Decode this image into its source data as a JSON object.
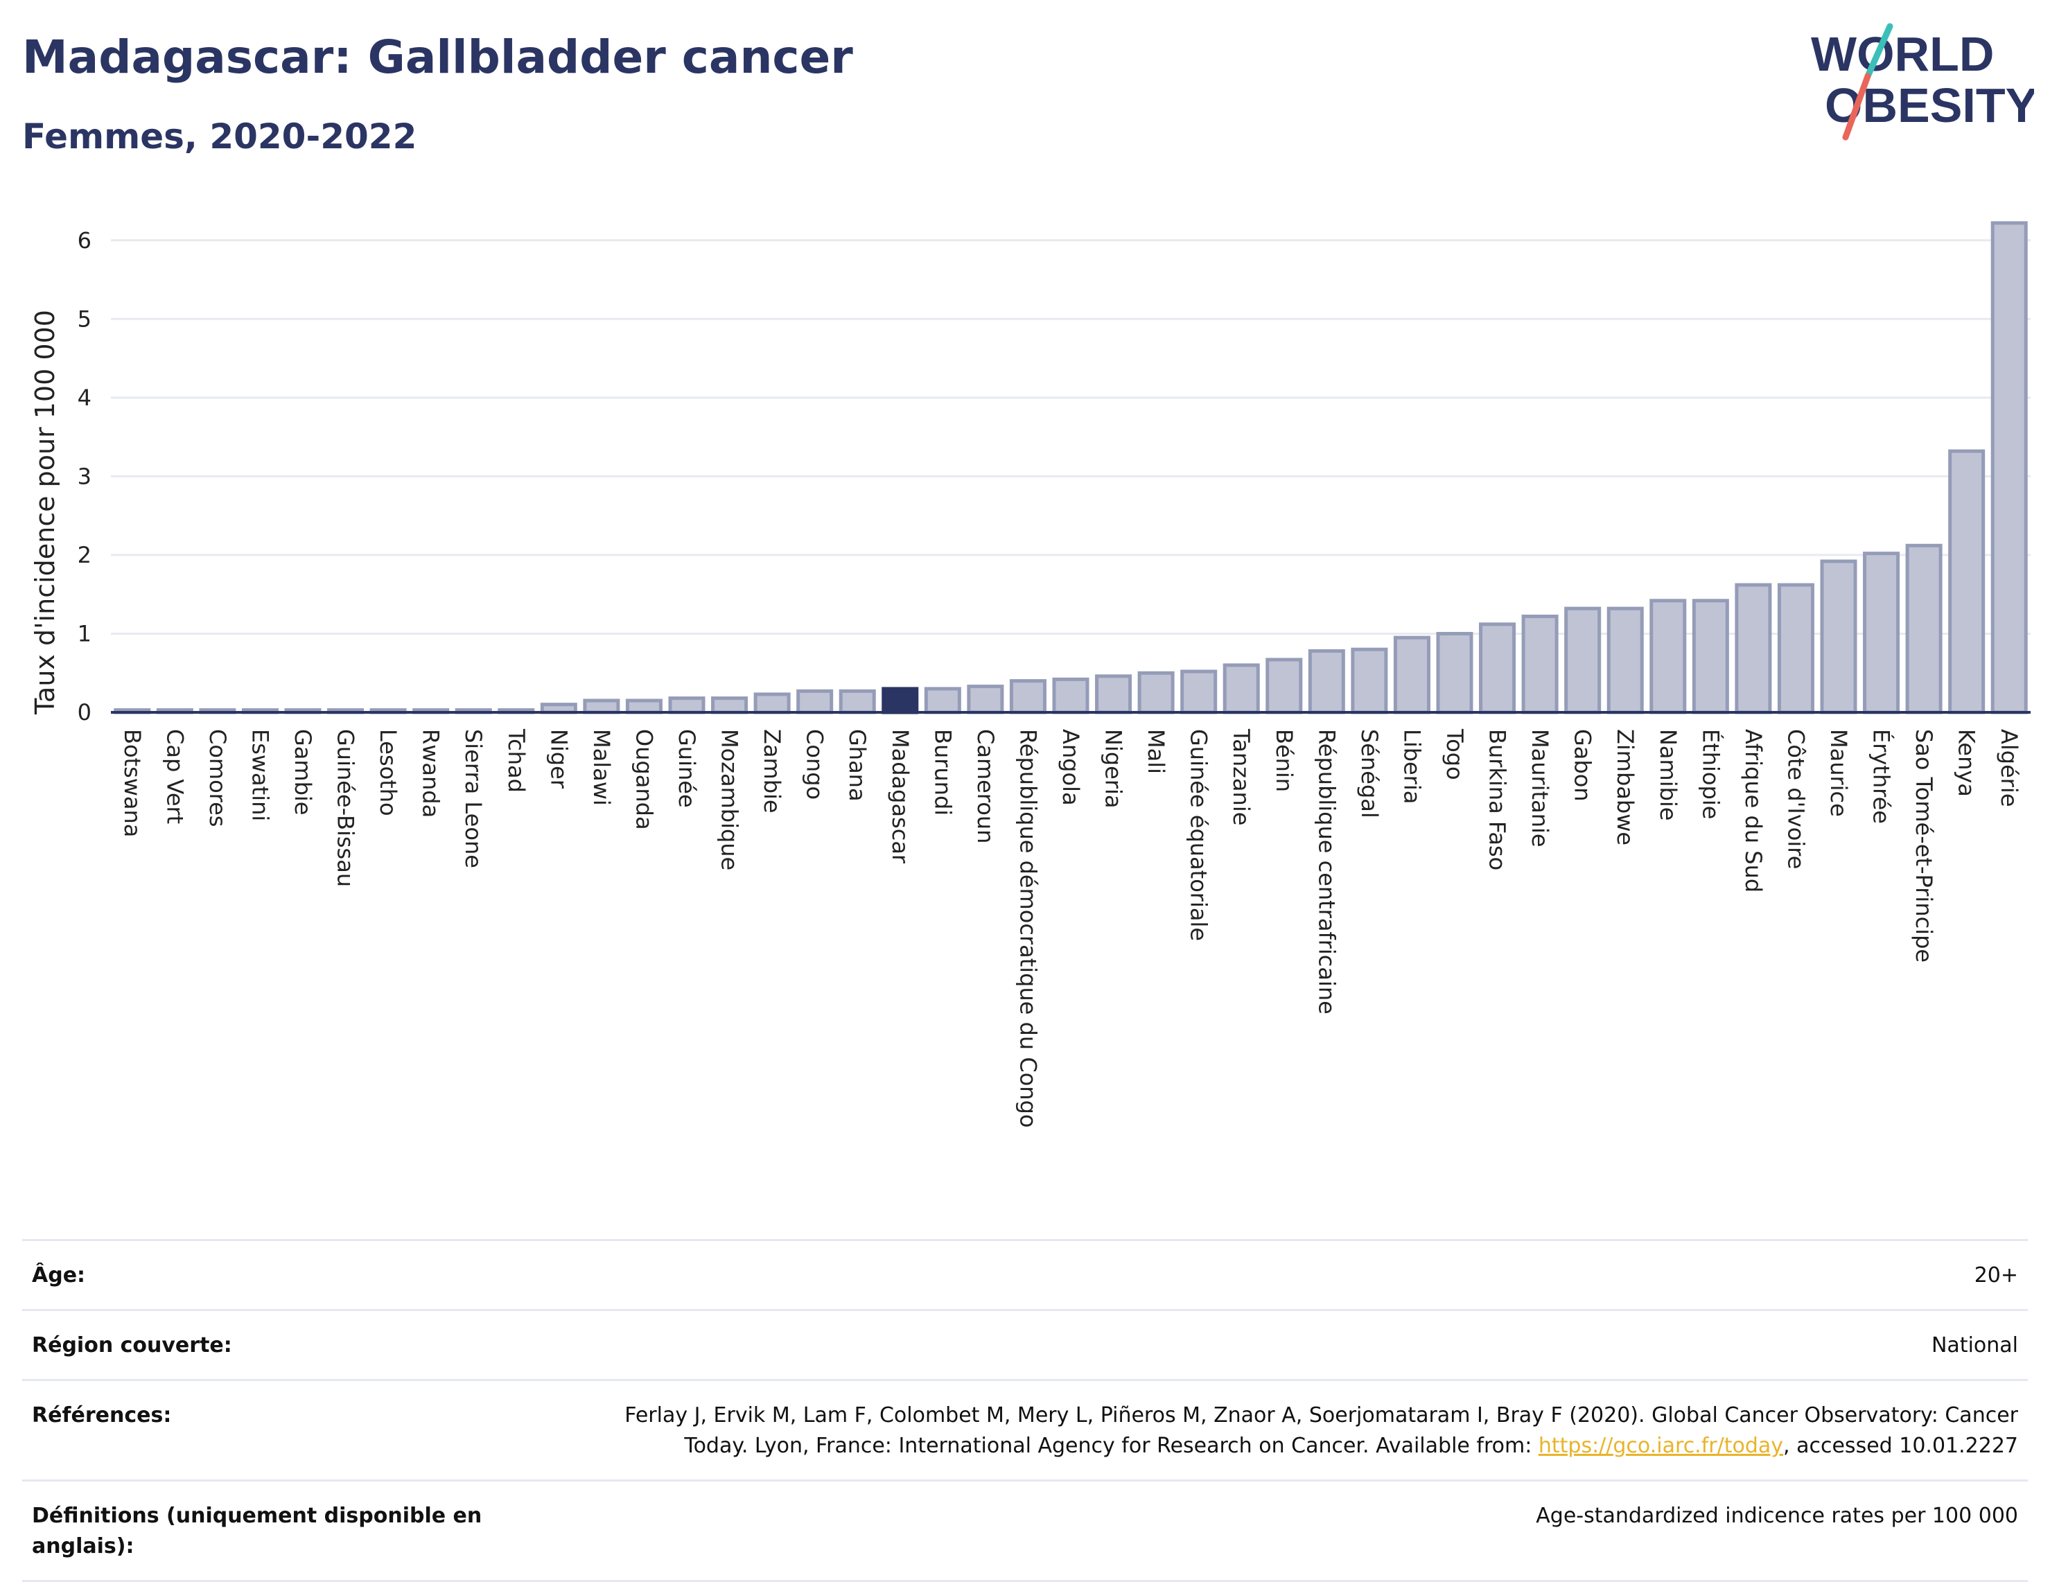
{
  "header": {
    "title": "Madagascar: Gallbladder cancer",
    "subtitle": "Femmes, 2020-2022"
  },
  "logo": {
    "line1": "WORLD",
    "line2": "OBESITY"
  },
  "colors": {
    "bar": "#bfc3d3",
    "bar_stroke": "#959cb8",
    "highlight": "#2b3563",
    "grid": "#e8eaf0",
    "axis": "#2b3563"
  },
  "chart_data": {
    "type": "bar",
    "ylabel": "Taux d'incidence pour 100 000",
    "xlabel": "",
    "ylim": [
      0,
      6.5
    ],
    "yticks": [
      0,
      1,
      2,
      3,
      4,
      5,
      6
    ],
    "grid": true,
    "highlight": "Madagascar",
    "categories": [
      "Botswana",
      "Cap Vert",
      "Comores",
      "Eswatini",
      "Gambie",
      "Guinée-Bissau",
      "Lesotho",
      "Rwanda",
      "Sierra Leone",
      "Tchad",
      "Niger",
      "Malawi",
      "Ouganda",
      "Guinée",
      "Mozambique",
      "Zambie",
      "Congo",
      "Ghana",
      "Madagascar",
      "Burundi",
      "Cameroun",
      "République démocratique du Congo",
      "Angola",
      "Nigeria",
      "Mali",
      "Guinée équatoriale",
      "Tanzanie",
      "Bénin",
      "République centrafricaine",
      "Sénégal",
      "Liberia",
      "Togo",
      "Burkina Faso",
      "Mauritanie",
      "Gabon",
      "Zimbabwe",
      "Namibie",
      "Éthiopie",
      "Afrique du Sud",
      "Côte d'Ivoire",
      "Maurice",
      "Érythrée",
      "Sao Tomé-et-Principe",
      "Kenya",
      "Algérie"
    ],
    "values": [
      0.03,
      0.03,
      0.03,
      0.03,
      0.03,
      0.03,
      0.03,
      0.03,
      0.03,
      0.03,
      0.1,
      0.15,
      0.15,
      0.18,
      0.18,
      0.23,
      0.27,
      0.27,
      0.3,
      0.3,
      0.33,
      0.4,
      0.42,
      0.46,
      0.5,
      0.52,
      0.6,
      0.67,
      0.78,
      0.8,
      0.95,
      1.0,
      1.12,
      1.22,
      1.32,
      1.32,
      1.42,
      1.42,
      1.62,
      1.62,
      1.92,
      2.02,
      2.12,
      3.32,
      6.22
    ]
  },
  "info": {
    "age_label": "Âge:",
    "age_value": "20+",
    "region_label": "Région couverte:",
    "region_value": "National",
    "refs_label": "Références:",
    "refs_line1": "Ferlay J, Ervik M, Lam F, Colombet M, Mery L, Piñeros M, Znaor A, Soerjomataram I, Bray F (2020). Global Cancer Observatory: Cancer",
    "refs_line2_prefix": "Today. Lyon, France: International Agency for Research on Cancer. Available from: ",
    "refs_link": "https://gco.iarc.fr/today",
    "refs_line2_suffix": ", accessed 10.01.2227",
    "defs_label": "Définitions (uniquement disponible en anglais):",
    "defs_value": "Age-standardized indicence rates per 100 000"
  }
}
